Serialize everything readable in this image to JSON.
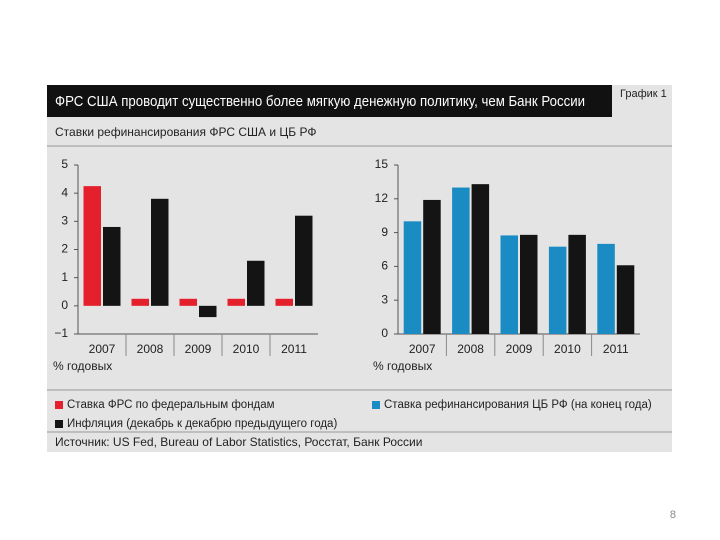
{
  "title": "ФРС США проводит существенно более мягкую денежную политику, чем Банк России",
  "tag": "График 1",
  "subtitle": "Ставки рефинансирования ФРС США и ЦБ РФ",
  "source": "Источник: US Fed, Bureau of Labor Statistics, Росстат, Банк России",
  "page_number": "8",
  "chart_data": [
    {
      "type": "bar",
      "y_label": "% годовых",
      "categories": [
        "2007",
        "2008",
        "2009",
        "2010",
        "2011"
      ],
      "ylim": [
        -1,
        5
      ],
      "yticks": [
        {
          "value": -1,
          "label": "−1"
        },
        0,
        1,
        2,
        3,
        4,
        5
      ],
      "series": [
        {
          "name": "Ставка ФРС по федеральным фондам",
          "color": "#e3202b",
          "values": [
            4.25,
            0.25,
            0.25,
            0.25,
            0.25
          ]
        },
        {
          "name": "Инфляция (декабрь к декабрю предыдущего года)",
          "color": "#141414",
          "values": [
            2.8,
            3.8,
            -0.4,
            1.6,
            3.2
          ]
        }
      ]
    },
    {
      "type": "bar",
      "y_label": "% годовых",
      "categories": [
        "2007",
        "2008",
        "2009",
        "2010",
        "2011"
      ],
      "ylim": [
        0,
        15
      ],
      "yticks": [
        0,
        3,
        6,
        9,
        12,
        15
      ],
      "series": [
        {
          "name": "Ставка рефинансирования ЦБ РФ (на конец года)",
          "color": "#1b8bc4",
          "values": [
            10,
            13,
            8.75,
            7.75,
            8
          ]
        },
        {
          "color": "#141414",
          "values": [
            11.9,
            13.3,
            8.8,
            8.8,
            6.1
          ]
        }
      ]
    }
  ]
}
